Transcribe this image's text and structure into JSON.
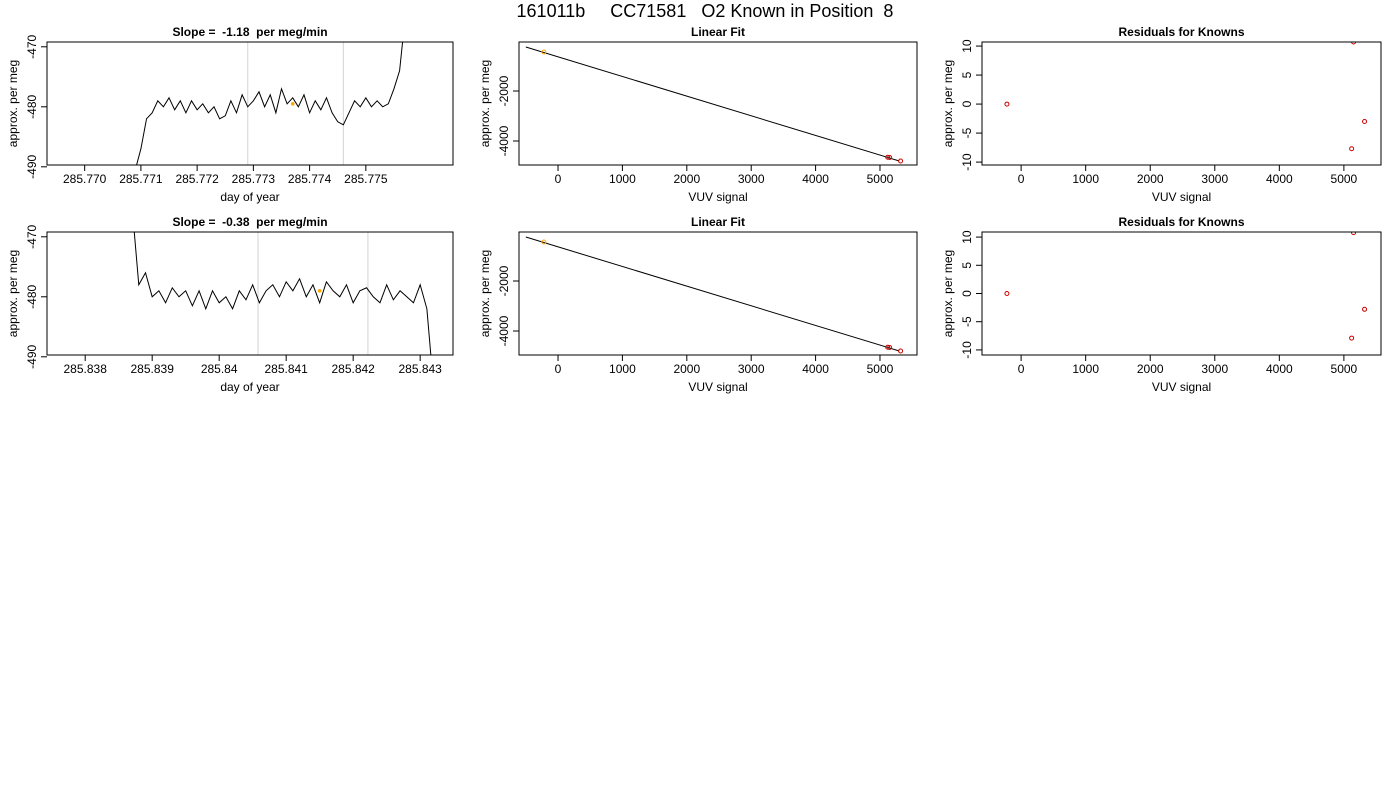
{
  "title": "161011b     CC71581   O2 Known in Position  8",
  "chart_data": [
    {
      "type": "line",
      "title": "Slope =  -1.18  per meg/min",
      "x_label": "day of year",
      "y_label": "approx. per meg",
      "xlim": [
        285.76933,
        285.77655
      ],
      "xticks": [
        {
          "value": 285.77,
          "label": "285.770"
        },
        285.771,
        285.772,
        285.773,
        285.774,
        285.775
      ],
      "ylim": [
        -489.7,
        -469.2
      ],
      "yticks": [
        -490,
        -480,
        -470
      ],
      "x": [
        285.7709,
        285.771,
        285.7711,
        285.7712,
        285.7713,
        285.7714,
        285.7715,
        285.7716,
        285.7717,
        285.7718,
        285.7719,
        285.772,
        285.7721,
        285.7722,
        285.7723,
        285.7724,
        285.7725,
        285.7726,
        285.7727,
        285.7728,
        285.7729,
        285.773,
        285.7731,
        285.7732,
        285.7733,
        285.7734,
        285.7735,
        285.7736,
        285.7737,
        285.7738,
        285.7739,
        285.774,
        285.7741,
        285.7742,
        285.7743,
        285.7744,
        285.7745,
        285.7746,
        285.7747,
        285.7748,
        285.7749,
        285.775,
        285.7751,
        285.7752,
        285.7753,
        285.7754,
        285.7755,
        285.7756,
        285.7757
      ],
      "series": [
        {
          "color": "#000000",
          "values": [
            -490.5,
            -487,
            -482,
            -481,
            -479,
            -480,
            -478.5,
            -480.5,
            -479,
            -481,
            -479,
            -480.5,
            -479.5,
            -481,
            -480,
            -482,
            -481.5,
            -479,
            -481,
            -478,
            -480,
            -479,
            -477.5,
            -480,
            -478,
            -481,
            -477,
            -479.5,
            -478.5,
            -480,
            -478,
            -481,
            -479,
            -480.5,
            -478.5,
            -481,
            -482.5,
            -483,
            -481,
            -479,
            -480,
            -478.5,
            -480,
            -479,
            -480,
            -479.5,
            -477,
            -474,
            -465
          ]
        }
      ],
      "vlines": [
        285.7729,
        285.7746
      ],
      "vline_color": "#d3d3d3",
      "highlight": {
        "x": 285.7737,
        "y": -479.5,
        "color": "#ffa500"
      }
    },
    {
      "type": "fit",
      "title": "Linear Fit",
      "x_label": "VUV signal",
      "y_label": "approx. per meg",
      "xlim": [
        -606,
        5575
      ],
      "xticks": [
        0,
        1000,
        2000,
        3000,
        4000,
        5000
      ],
      "ylim": [
        -4960,
        -40
      ],
      "yticks": [
        -4000,
        -2000
      ],
      "x": [
        -220,
        5120,
        5150,
        5320
      ],
      "values": [
        -440,
        -4650,
        -4660,
        -4800
      ],
      "point_colors": [
        "#ffa500",
        "#cc0000",
        "#cc0000",
        "#cc0000"
      ],
      "fit": {
        "color": "#000000",
        "x": [
          -500,
          5300
        ],
        "values": [
          -240,
          -4800
        ]
      }
    },
    {
      "type": "scatter",
      "title": "Residuals for Knowns",
      "x_label": "VUV signal",
      "y_label": "approx. per meg",
      "xlim": [
        -606,
        5575
      ],
      "xticks": [
        0,
        1000,
        2000,
        3000,
        4000,
        5000
      ],
      "ylim": [
        -10.5,
        10.7
      ],
      "yticks": [
        -10,
        -5,
        0,
        5,
        10
      ],
      "x": [
        -220,
        5150,
        5320,
        5120
      ],
      "values": [
        0,
        10.7,
        -3,
        -7.7
      ],
      "color": "#cc0000"
    },
    {
      "type": "line",
      "title": "Slope =  -0.38  per meg/min",
      "x_label": "day of year",
      "y_label": "approx. per meg",
      "xlim": [
        285.83743,
        285.84349
      ],
      "xticks": [
        285.838,
        285.839,
        285.84,
        285.841,
        285.842,
        285.843
      ],
      "ylim": [
        -489.7,
        -469.2
      ],
      "yticks": [
        -490,
        -480,
        -470
      ],
      "x": [
        285.8387,
        285.8388,
        285.8389,
        285.839,
        285.8391,
        285.8392,
        285.8393,
        285.8394,
        285.8395,
        285.8396,
        285.8397,
        285.8398,
        285.8399,
        285.84,
        285.8401,
        285.8402,
        285.8403,
        285.8404,
        285.8405,
        285.8406,
        285.8407,
        285.8408,
        285.8409,
        285.841,
        285.8411,
        285.8412,
        285.8413,
        285.8414,
        285.8415,
        285.8416,
        285.8417,
        285.8418,
        285.8419,
        285.842,
        285.8421,
        285.8422,
        285.8423,
        285.8424,
        285.8425,
        285.8426,
        285.8427,
        285.8428,
        285.8429,
        285.843,
        285.8431,
        285.8432
      ],
      "series": [
        {
          "color": "#000000",
          "values": [
            -465,
            -478,
            -476,
            -480,
            -479,
            -481,
            -478.5,
            -480,
            -479,
            -481.5,
            -479,
            -482,
            -479,
            -481,
            -480,
            -482,
            -479,
            -480.5,
            -478,
            -481,
            -479,
            -478,
            -480,
            -477.5,
            -479,
            -477,
            -480,
            -478,
            -481,
            -477.5,
            -479,
            -480,
            -478,
            -481,
            -479,
            -478.5,
            -480,
            -481,
            -478,
            -480.5,
            -479,
            -480,
            -481,
            -478,
            -482,
            -495
          ]
        }
      ],
      "vlines": [
        285.84058,
        285.84222
      ],
      "vline_color": "#d3d3d3",
      "highlight": {
        "x": 285.8415,
        "y": -479,
        "color": "#ffa500"
      }
    },
    {
      "type": "fit",
      "title": "Linear Fit",
      "x_label": "VUV signal",
      "y_label": "approx. per meg",
      "xlim": [
        -606,
        5575
      ],
      "xticks": [
        0,
        1000,
        2000,
        3000,
        4000,
        5000
      ],
      "ylim": [
        -4960,
        -40
      ],
      "yticks": [
        -4000,
        -2000
      ],
      "x": [
        -220,
        5120,
        5150,
        5320
      ],
      "values": [
        -440,
        -4650,
        -4660,
        -4800
      ],
      "point_colors": [
        "#ffa500",
        "#cc0000",
        "#cc0000",
        "#cc0000"
      ],
      "fit": {
        "color": "#000000",
        "x": [
          -500,
          5300
        ],
        "values": [
          -240,
          -4800
        ]
      }
    },
    {
      "type": "scatter",
      "title": "Residuals for Knowns",
      "x_label": "VUV signal",
      "y_label": "approx. per meg",
      "xlim": [
        -606,
        5575
      ],
      "xticks": [
        0,
        1000,
        2000,
        3000,
        4000,
        5000
      ],
      "ylim": [
        -10.9,
        10.9
      ],
      "yticks": [
        -10,
        -5,
        0,
        5,
        10
      ],
      "x": [
        -220,
        5150,
        5320,
        5120
      ],
      "values": [
        0,
        10.8,
        -2.8,
        -7.9
      ],
      "color": "#cc0000"
    }
  ]
}
